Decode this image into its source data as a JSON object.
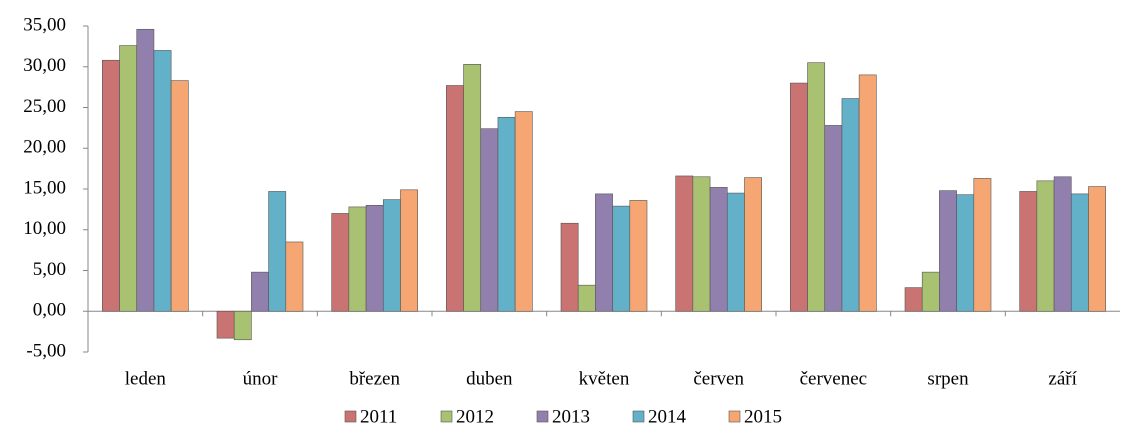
{
  "chart_data": {
    "type": "bar",
    "categories": [
      "leden",
      "únor",
      "březen",
      "duben",
      "květen",
      "červen",
      "červenec",
      "srpen",
      "září"
    ],
    "series": [
      {
        "name": "2011",
        "color": "#c97472",
        "values": [
          30.8,
          -3.3,
          12.0,
          27.7,
          10.8,
          16.6,
          28.0,
          2.9,
          14.7
        ]
      },
      {
        "name": "2012",
        "color": "#a8c272",
        "values": [
          32.6,
          -3.5,
          12.8,
          30.3,
          3.2,
          16.5,
          30.5,
          4.8,
          16.0
        ]
      },
      {
        "name": "2013",
        "color": "#917fae",
        "values": [
          34.6,
          4.8,
          13.0,
          22.4,
          14.4,
          15.2,
          22.8,
          14.8,
          16.5
        ]
      },
      {
        "name": "2014",
        "color": "#62b1c9",
        "values": [
          32.0,
          14.7,
          13.7,
          23.8,
          12.9,
          14.5,
          26.1,
          14.3,
          14.4
        ]
      },
      {
        "name": "2015",
        "color": "#f6a672",
        "values": [
          28.3,
          8.5,
          14.9,
          24.5,
          13.6,
          16.4,
          29.0,
          16.3,
          15.3
        ]
      }
    ],
    "ylim": [
      -5,
      35
    ],
    "yticks": [
      {
        "value": -5,
        "label": "-5,00"
      },
      {
        "value": 0,
        "label": "0,00"
      },
      {
        "value": 5,
        "label": "5,00"
      },
      {
        "value": 10,
        "label": "10,00"
      },
      {
        "value": 15,
        "label": "15,00"
      },
      {
        "value": 20,
        "label": "20,00"
      },
      {
        "value": 25,
        "label": "25,00"
      },
      {
        "value": 30,
        "label": "30,00"
      },
      {
        "value": 35,
        "label": "35,00"
      }
    ],
    "legend": "bottom"
  }
}
